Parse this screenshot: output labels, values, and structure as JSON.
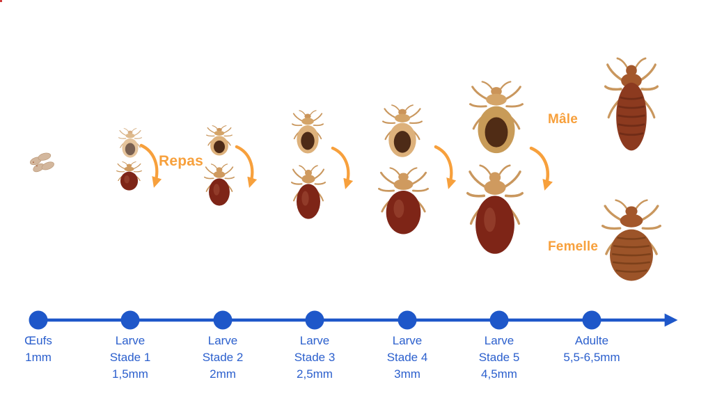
{
  "palette": {
    "timeline_blue": "#1e57c9",
    "label_blue": "#2b5fcd",
    "accent_orange": "#f7a03c",
    "egg_tan": "#d3b79d",
    "bug_leg_tan": "#c9975e",
    "bug_unfed_body": "#ddb17b",
    "bug_unfed_patch": "#40200e",
    "bug_fed_abdomen": "#7e2517",
    "bug_head_tan": "#cf9a5f",
    "adult_male_body": "#8c3a1f",
    "adult_female_body": "#9c5429",
    "adult_stripe": "#5a2110"
  },
  "annotations": {
    "repas": "Repas",
    "male": "Mâle",
    "female": "Femelle"
  },
  "timeline": {
    "stages": [
      {
        "id": "oeufs",
        "lines": [
          "Œufs",
          "1mm"
        ]
      },
      {
        "id": "larve-1",
        "lines": [
          "Larve",
          "Stade 1",
          "1,5mm"
        ]
      },
      {
        "id": "larve-2",
        "lines": [
          "Larve",
          "Stade 2",
          "2mm"
        ]
      },
      {
        "id": "larve-3",
        "lines": [
          "Larve",
          "Stade 3",
          "2,5mm"
        ]
      },
      {
        "id": "larve-4",
        "lines": [
          "Larve",
          "Stade 4",
          "3mm"
        ]
      },
      {
        "id": "larve-5",
        "lines": [
          "Larve",
          "Stade 5",
          "4,5mm"
        ]
      },
      {
        "id": "adulte",
        "lines": [
          "Adulte",
          "5,5-6,5mm"
        ]
      }
    ]
  },
  "figures": [
    {
      "name": "eggs-image",
      "variant": "eggs"
    },
    {
      "name": "larva-stage1-unfed-image",
      "variant": "unfed"
    },
    {
      "name": "larva-stage1-fed-image",
      "variant": "fed"
    },
    {
      "name": "larva-stage2-unfed-image",
      "variant": "unfed"
    },
    {
      "name": "larva-stage2-fed-image",
      "variant": "fed"
    },
    {
      "name": "larva-stage3-unfed-image",
      "variant": "unfed"
    },
    {
      "name": "larva-stage3-fed-image",
      "variant": "fed"
    },
    {
      "name": "larva-stage4-unfed-image",
      "variant": "unfed"
    },
    {
      "name": "larva-stage4-fed-image",
      "variant": "fed"
    },
    {
      "name": "larva-stage5-unfed-image",
      "variant": "unfed5"
    },
    {
      "name": "larva-stage5-fed-image",
      "variant": "fed"
    },
    {
      "name": "adult-male-image",
      "variant": "male"
    },
    {
      "name": "adult-female-image",
      "variant": "female"
    }
  ]
}
